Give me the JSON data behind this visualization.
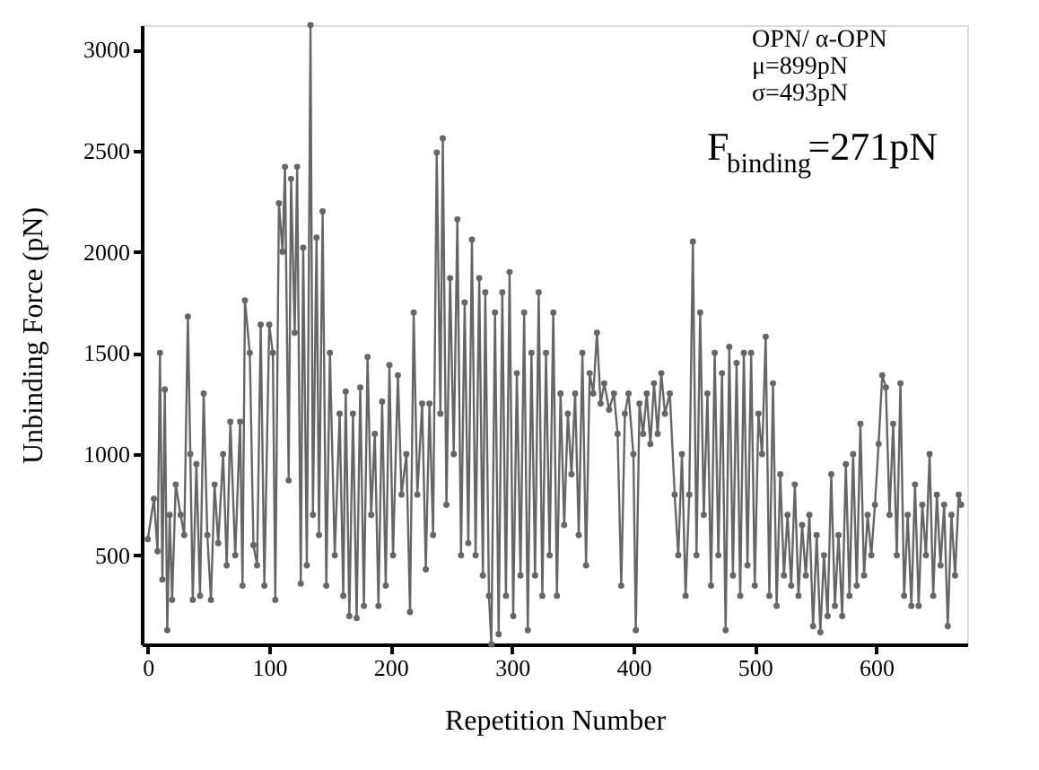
{
  "chart_data": {
    "type": "line",
    "xlabel": "Repetition Number",
    "ylabel": "Unbinding Force (pN)",
    "xlim": [
      -5,
      675
    ],
    "ylim": [
      60,
      3120
    ],
    "xticks": [
      0,
      100,
      200,
      300,
      400,
      500,
      600
    ],
    "yticks": [
      500,
      1000,
      1500,
      2000,
      2500,
      3000
    ],
    "grid": false,
    "marker": "circle",
    "line_style": "solid",
    "annotations": [
      "OPN/ α-OPN",
      "μ=899pN",
      "σ=493pN",
      "F$_{binding}$=271pN"
    ],
    "series": [
      {
        "color": "#666666",
        "x": [
          0,
          5,
          8,
          10,
          12,
          14,
          16,
          18,
          20,
          23,
          27,
          30,
          33,
          35,
          37,
          40,
          43,
          46,
          49,
          52,
          55,
          58,
          62,
          65,
          68,
          72,
          76,
          78,
          80,
          84,
          87,
          90,
          93,
          96,
          100,
          103,
          105,
          108,
          111,
          113,
          116,
          118,
          121,
          123,
          126,
          128,
          131,
          134,
          136,
          139,
          141,
          144,
          147,
          150,
          154,
          158,
          161,
          163,
          166,
          169,
          172,
          175,
          178,
          181,
          184,
          187,
          190,
          193,
          196,
          199,
          202,
          206,
          209,
          213,
          216,
          219,
          222,
          226,
          229,
          232,
          235,
          238,
          241,
          243,
          246,
          249,
          252,
          255,
          258,
          261,
          264,
          267,
          270,
          273,
          276,
          278,
          281,
          283,
          286,
          289,
          292,
          295,
          298,
          301,
          304,
          307,
          310,
          313,
          316,
          319,
          322,
          325,
          328,
          331,
          334,
          337,
          340,
          343,
          346,
          349,
          352,
          355,
          358,
          361,
          364,
          367,
          370,
          373,
          376,
          380,
          384,
          387,
          390,
          393,
          396,
          400,
          402,
          405,
          408,
          411,
          414,
          417,
          420,
          423,
          426,
          430,
          434,
          437,
          440,
          443,
          446,
          449,
          452,
          455,
          458,
          461,
          464,
          467,
          470,
          473,
          476,
          479,
          482,
          485,
          488,
          491,
          494,
          497,
          500,
          503,
          506,
          509,
          512,
          515,
          518,
          521,
          524,
          527,
          530,
          533,
          536,
          539,
          542,
          545,
          548,
          551,
          554,
          557,
          560,
          563,
          566,
          569,
          572,
          575,
          578,
          581,
          584,
          587,
          590,
          593,
          596,
          599,
          602,
          605,
          608,
          611,
          614,
          617,
          620,
          623,
          626,
          629,
          632,
          635,
          638,
          641,
          644,
          647,
          650,
          653,
          656,
          659,
          662,
          665,
          668,
          670
        ],
        "values": [
          580,
          780,
          520,
          1500,
          380,
          1320,
          130,
          700,
          280,
          850,
          700,
          600,
          1680,
          1000,
          280,
          950,
          300,
          1300,
          600,
          280,
          850,
          560,
          1000,
          450,
          1160,
          500,
          1160,
          350,
          1760,
          1500,
          550,
          450,
          1640,
          350,
          1640,
          1500,
          280,
          2240,
          2000,
          2420,
          870,
          2360,
          1600,
          2420,
          360,
          2020,
          450,
          3120,
          700,
          2070,
          600,
          2200,
          350,
          1500,
          500,
          1200,
          300,
          1310,
          200,
          1200,
          190,
          1330,
          250,
          1480,
          700,
          1100,
          250,
          1260,
          350,
          1440,
          500,
          1390,
          800,
          1000,
          220,
          1700,
          800,
          1250,
          430,
          1250,
          600,
          2490,
          1200,
          2560,
          750,
          1870,
          1000,
          2160,
          500,
          1750,
          560,
          2060,
          500,
          1870,
          400,
          1800,
          300,
          60,
          1700,
          110,
          1800,
          300,
          1900,
          200,
          1400,
          400,
          1700,
          130,
          1500,
          400,
          1800,
          300,
          1500,
          500,
          1700,
          300,
          1300,
          650,
          1200,
          900,
          1300,
          600,
          1500,
          450,
          1400,
          1300,
          1600,
          1250,
          1350,
          1220,
          1300,
          1100,
          350,
          1200,
          1300,
          1000,
          130,
          1250,
          1100,
          1300,
          1050,
          1350,
          1100,
          1400,
          1200,
          1300,
          800,
          500,
          1000,
          300,
          800,
          2050,
          500,
          1700,
          700,
          1300,
          350,
          1500,
          500,
          1400,
          130,
          1530,
          400,
          1450,
          300,
          1500,
          450,
          1500,
          350,
          1200,
          1000,
          1580,
          300,
          1350,
          250,
          900,
          400,
          700,
          350,
          850,
          300,
          650,
          400,
          700,
          150,
          600,
          120,
          500,
          200,
          900,
          250,
          600,
          200,
          950,
          300,
          1000,
          350,
          1150,
          400,
          700,
          500,
          750,
          1050,
          1390,
          1330,
          700,
          1150,
          500,
          1350,
          300,
          700,
          250,
          850,
          250,
          750,
          500,
          1000,
          300,
          800,
          450,
          750,
          150,
          700,
          400,
          800,
          750
        ]
      }
    ]
  }
}
